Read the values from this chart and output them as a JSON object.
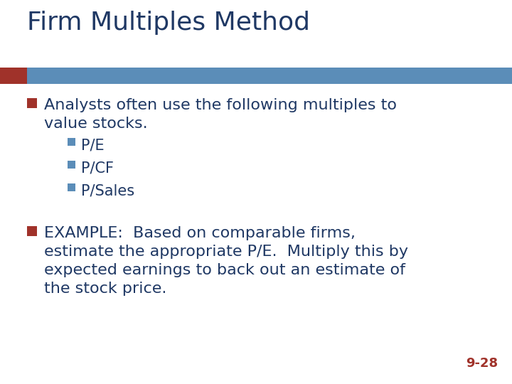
{
  "title": "Firm Multiples Method",
  "title_color": "#1F3864",
  "title_fontsize": 26,
  "bg_color": "#FFFFFF",
  "bar_left_color": "#A0322A",
  "bar_main_color": "#5B8DB8",
  "bullet_color_main": "#A0322A",
  "bullet_color_sub": "#5B8DB8",
  "text_color": "#1F3864",
  "page_num": "9-28",
  "page_num_color": "#A0322A",
  "bullet1_line1": "Analysts often use the following multiples to",
  "bullet1_line2": "value stocks.",
  "sub_bullets": [
    "P/E",
    "P/CF",
    "P/Sales"
  ],
  "bullet2_line1": "EXAMPLE:  Based on comparable firms,",
  "bullet2_line2": "estimate the appropriate P/E.  Multiply this by",
  "bullet2_line3": "expected earnings to back out an estimate of",
  "bullet2_line4": "the stock price.",
  "main_fontsize": 16,
  "sub_fontsize": 15
}
